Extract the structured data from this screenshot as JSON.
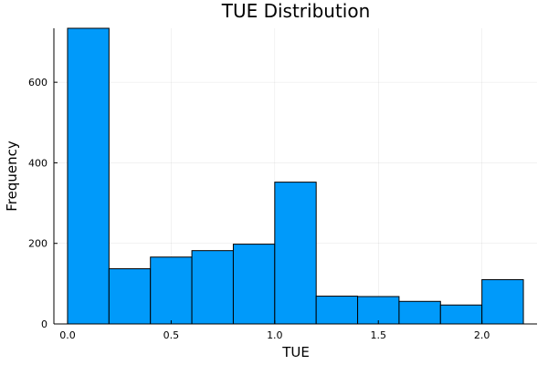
{
  "chart_data": {
    "type": "bar",
    "title": "TUE Distribution",
    "xlabel": "TUE",
    "ylabel": "Frequency",
    "bar_color": "#009AFA",
    "grid": true,
    "legend": "none",
    "bins": [
      {
        "x0": 0.0,
        "x1": 0.2,
        "value": 734
      },
      {
        "x0": 0.2,
        "x1": 0.4,
        "value": 137
      },
      {
        "x0": 0.4,
        "x1": 0.6,
        "value": 166
      },
      {
        "x0": 0.6,
        "x1": 0.8,
        "value": 182
      },
      {
        "x0": 0.8,
        "x1": 1.0,
        "value": 198
      },
      {
        "x0": 1.0,
        "x1": 1.2,
        "value": 352
      },
      {
        "x0": 1.2,
        "x1": 1.4,
        "value": 69
      },
      {
        "x0": 1.4,
        "x1": 1.6,
        "value": 68
      },
      {
        "x0": 1.6,
        "x1": 1.8,
        "value": 56
      },
      {
        "x0": 1.8,
        "x1": 2.0,
        "value": 47
      },
      {
        "x0": 2.0,
        "x1": 2.2,
        "value": 110
      }
    ],
    "xlim": [
      -0.066,
      2.266
    ],
    "ylim": [
      0,
      734
    ],
    "xticks": [
      {
        "value": 0.0,
        "label": "0.0"
      },
      {
        "value": 0.5,
        "label": "0.5"
      },
      {
        "value": 1.0,
        "label": "1.0"
      },
      {
        "value": 1.5,
        "label": "1.5"
      },
      {
        "value": 2.0,
        "label": "2.0"
      }
    ],
    "yticks": [
      {
        "value": 0,
        "label": "0"
      },
      {
        "value": 200,
        "label": "200"
      },
      {
        "value": 400,
        "label": "400"
      },
      {
        "value": 600,
        "label": "600"
      }
    ]
  }
}
